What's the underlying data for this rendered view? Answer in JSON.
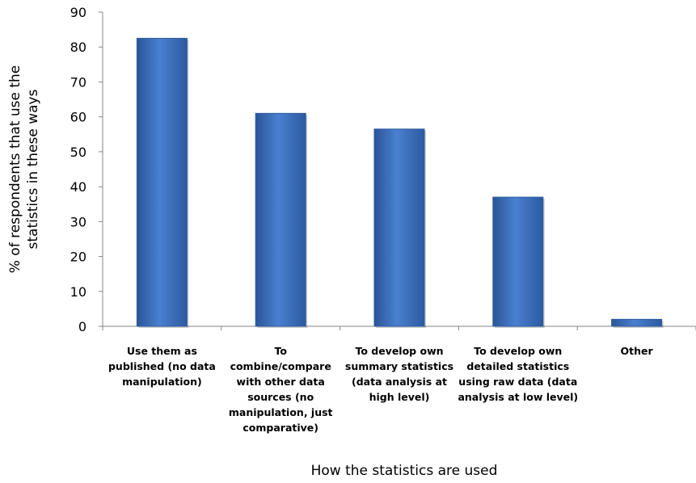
{
  "chart_data": {
    "type": "bar",
    "categories": [
      [
        "Use them as",
        "published (no data",
        "manipulation)"
      ],
      [
        "To",
        "combine/compare",
        "with other data",
        "sources (no",
        "manipulation, just",
        "comparative)"
      ],
      [
        "To develop own",
        "summary statistics",
        "(data analysis at",
        "high level)"
      ],
      [
        "To develop own",
        "detailed statistics",
        "using raw data (data",
        "analysis at low level)"
      ],
      [
        "Other"
      ]
    ],
    "values": [
      82.5,
      61,
      56.5,
      37,
      2
    ],
    "ylim": [
      0,
      90
    ],
    "yticks": [
      0,
      10,
      20,
      30,
      40,
      50,
      60,
      70,
      80,
      90
    ],
    "ylabel": [
      "% of respondents that use the",
      "statistics in these ways"
    ],
    "xlabel": "How the statistics are used",
    "bar_color": "#3E72C4",
    "grid": false,
    "legend": "none"
  }
}
